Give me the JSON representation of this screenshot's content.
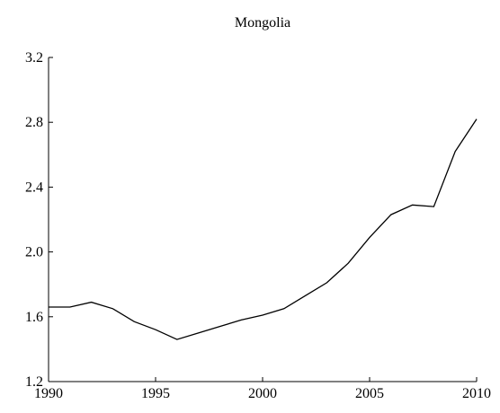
{
  "chart_data": {
    "type": "line",
    "title": "Mongolia",
    "x": [
      1990,
      1991,
      1992,
      1993,
      1994,
      1995,
      1996,
      1997,
      1998,
      1999,
      2000,
      2001,
      2002,
      2003,
      2004,
      2005,
      2006,
      2007,
      2008,
      2009,
      2010
    ],
    "values": [
      1.66,
      1.66,
      1.69,
      1.65,
      1.57,
      1.52,
      1.46,
      1.5,
      1.54,
      1.58,
      1.61,
      1.65,
      1.73,
      1.81,
      1.93,
      2.09,
      2.23,
      2.29,
      2.28,
      2.62,
      2.82
    ],
    "color": "#000000",
    "xlim": [
      1990,
      2010
    ],
    "xticks": [
      1990,
      1995,
      2000,
      2005,
      2010
    ],
    "ylim": [
      1.2,
      3.2
    ],
    "yticks": [
      1.2,
      1.6,
      {
        "value": 2,
        "label": "2.0"
      },
      2.4,
      2.8,
      3.2
    ]
  }
}
